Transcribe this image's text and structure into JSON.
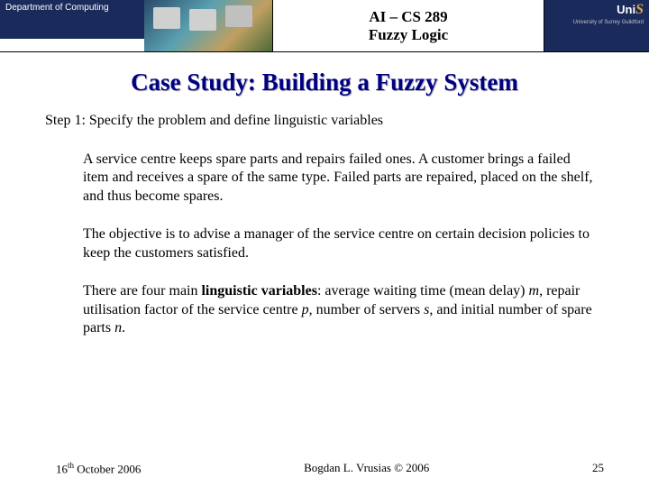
{
  "header": {
    "dept": "Department of Computing",
    "course_line1": "AI – CS 289",
    "course_line2": "Fuzzy Logic",
    "uni_logo_main": "Uni",
    "uni_logo_s": "S",
    "uni_sub": "University of Surrey\nGuildford"
  },
  "title": "Case Study: Building a Fuzzy System",
  "step": "Step 1:  Specify the problem and define linguistic variables",
  "p1": "A service centre keeps spare parts and repairs failed ones. A customer brings a failed item and receives a spare of the same type.  Failed parts are repaired, placed on the shelf, and thus become spares.",
  "p2": "The objective is to advise a manager of the service centre on certain decision policies to keep the customers satisfied.",
  "p3_a": "There are four main ",
  "p3_b": "linguistic variables",
  "p3_c": ": average waiting time (mean delay) ",
  "p3_m": "m",
  "p3_d": ", repair utilisation factor of the service centre ",
  "p3_p": "p",
  "p3_e": ", number of servers ",
  "p3_s": "s",
  "p3_f": ", and initial number of spare parts ",
  "p3_n": "n",
  "p3_g": ".",
  "footer": {
    "date_a": "16",
    "date_sup": "th",
    "date_b": " October 2006",
    "author": "Bogdan L. Vrusias © 2006",
    "page": "25"
  }
}
